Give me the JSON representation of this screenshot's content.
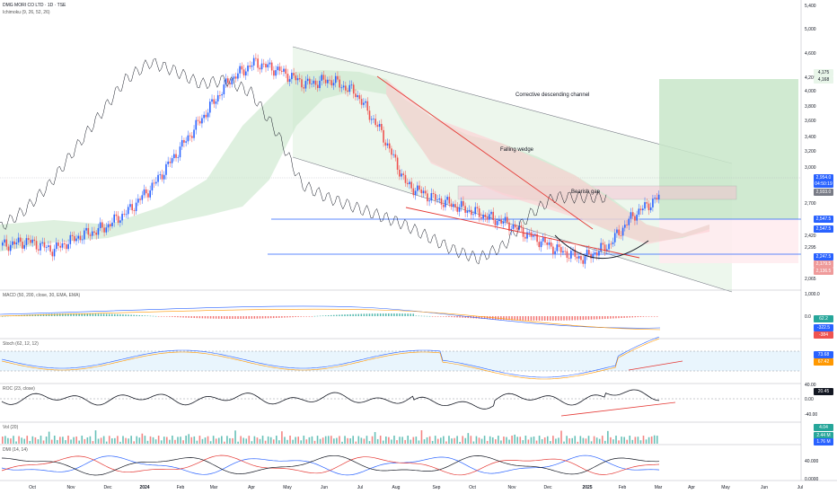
{
  "chart_data": {
    "type": "candlestick",
    "title": "DMG MORI CO LTD · 1D · TSE",
    "indicator_main": "Ichimoku (9, 26, 52, 26)",
    "price_ticks": [
      "5,400",
      "5,000",
      "4,600",
      "4,200",
      "4,000",
      "3,800",
      "3,600",
      "3,400",
      "3,200",
      "3,000",
      "2,700",
      "2,420",
      "2,295",
      "2,065",
      "1,000.0",
      "0.0",
      "40.00",
      "0.00",
      "-40.00",
      "40.000",
      "0.0000"
    ],
    "price_levels": [
      {
        "value": "4,175",
        "color": "#e8f5e9"
      },
      {
        "value": "4,168",
        "color": "#e8f5e9"
      },
      {
        "value": "2,954.0",
        "color": "#2962ff"
      },
      {
        "value": "04:50:19",
        "color": "#2962ff"
      },
      {
        "value": "2,933.0",
        "color": "#787b86"
      },
      {
        "value": "2,547.5",
        "color": "#2962ff"
      },
      {
        "value": "2,547.5",
        "color": "#2962ff"
      },
      {
        "value": "2,247.5",
        "color": "#2962ff"
      },
      {
        "value": "2,179.5",
        "color": "#ef9a9a"
      },
      {
        "value": "2,136.5",
        "color": "#ef9a9a"
      }
    ],
    "months": [
      "Oct",
      "Nov",
      "Dec",
      "2024",
      "Feb",
      "Mar",
      "Apr",
      "May",
      "Jun",
      "Jul",
      "Aug",
      "Sep",
      "Oct",
      "Nov",
      "Dec",
      "2025",
      "Feb",
      "Mar",
      "Apr",
      "May",
      "Jun",
      "Jul"
    ],
    "series_close_approx": [
      2400,
      2450,
      2350,
      2500,
      2600,
      2800,
      3100,
      3500,
      3900,
      4300,
      4500,
      4400,
      4250,
      4300,
      4150,
      3700,
      3100,
      2950,
      2850,
      2750,
      2650,
      2500,
      2350,
      2250,
      2400,
      2750,
      2954
    ],
    "annotations": [
      "Corrective descending channel",
      "Falling wedge",
      "Bearish gap"
    ],
    "panes": [
      {
        "name": "MACD (50, 200, close, 30, EMA, EMA)",
        "values": [
          "62.2",
          "-322.5",
          "-384"
        ]
      },
      {
        "name": "Stoch (62, 12, 12)",
        "values": [
          "73.68",
          "67.42"
        ]
      },
      {
        "name": "ROC (23, close)",
        "values": [
          "20.45"
        ]
      },
      {
        "name": "Vol (20)",
        "values": [
          "4.04",
          "2.44 M",
          "1.76 M"
        ]
      },
      {
        "name": "DMI (14, 14)",
        "values": []
      }
    ],
    "colors": {
      "up": "#2962ff",
      "down": "#ef5350",
      "cloud_bull": "#c8e6c9",
      "cloud_bear": "#ffcdd2",
      "channel": "#e8f5e9"
    }
  }
}
